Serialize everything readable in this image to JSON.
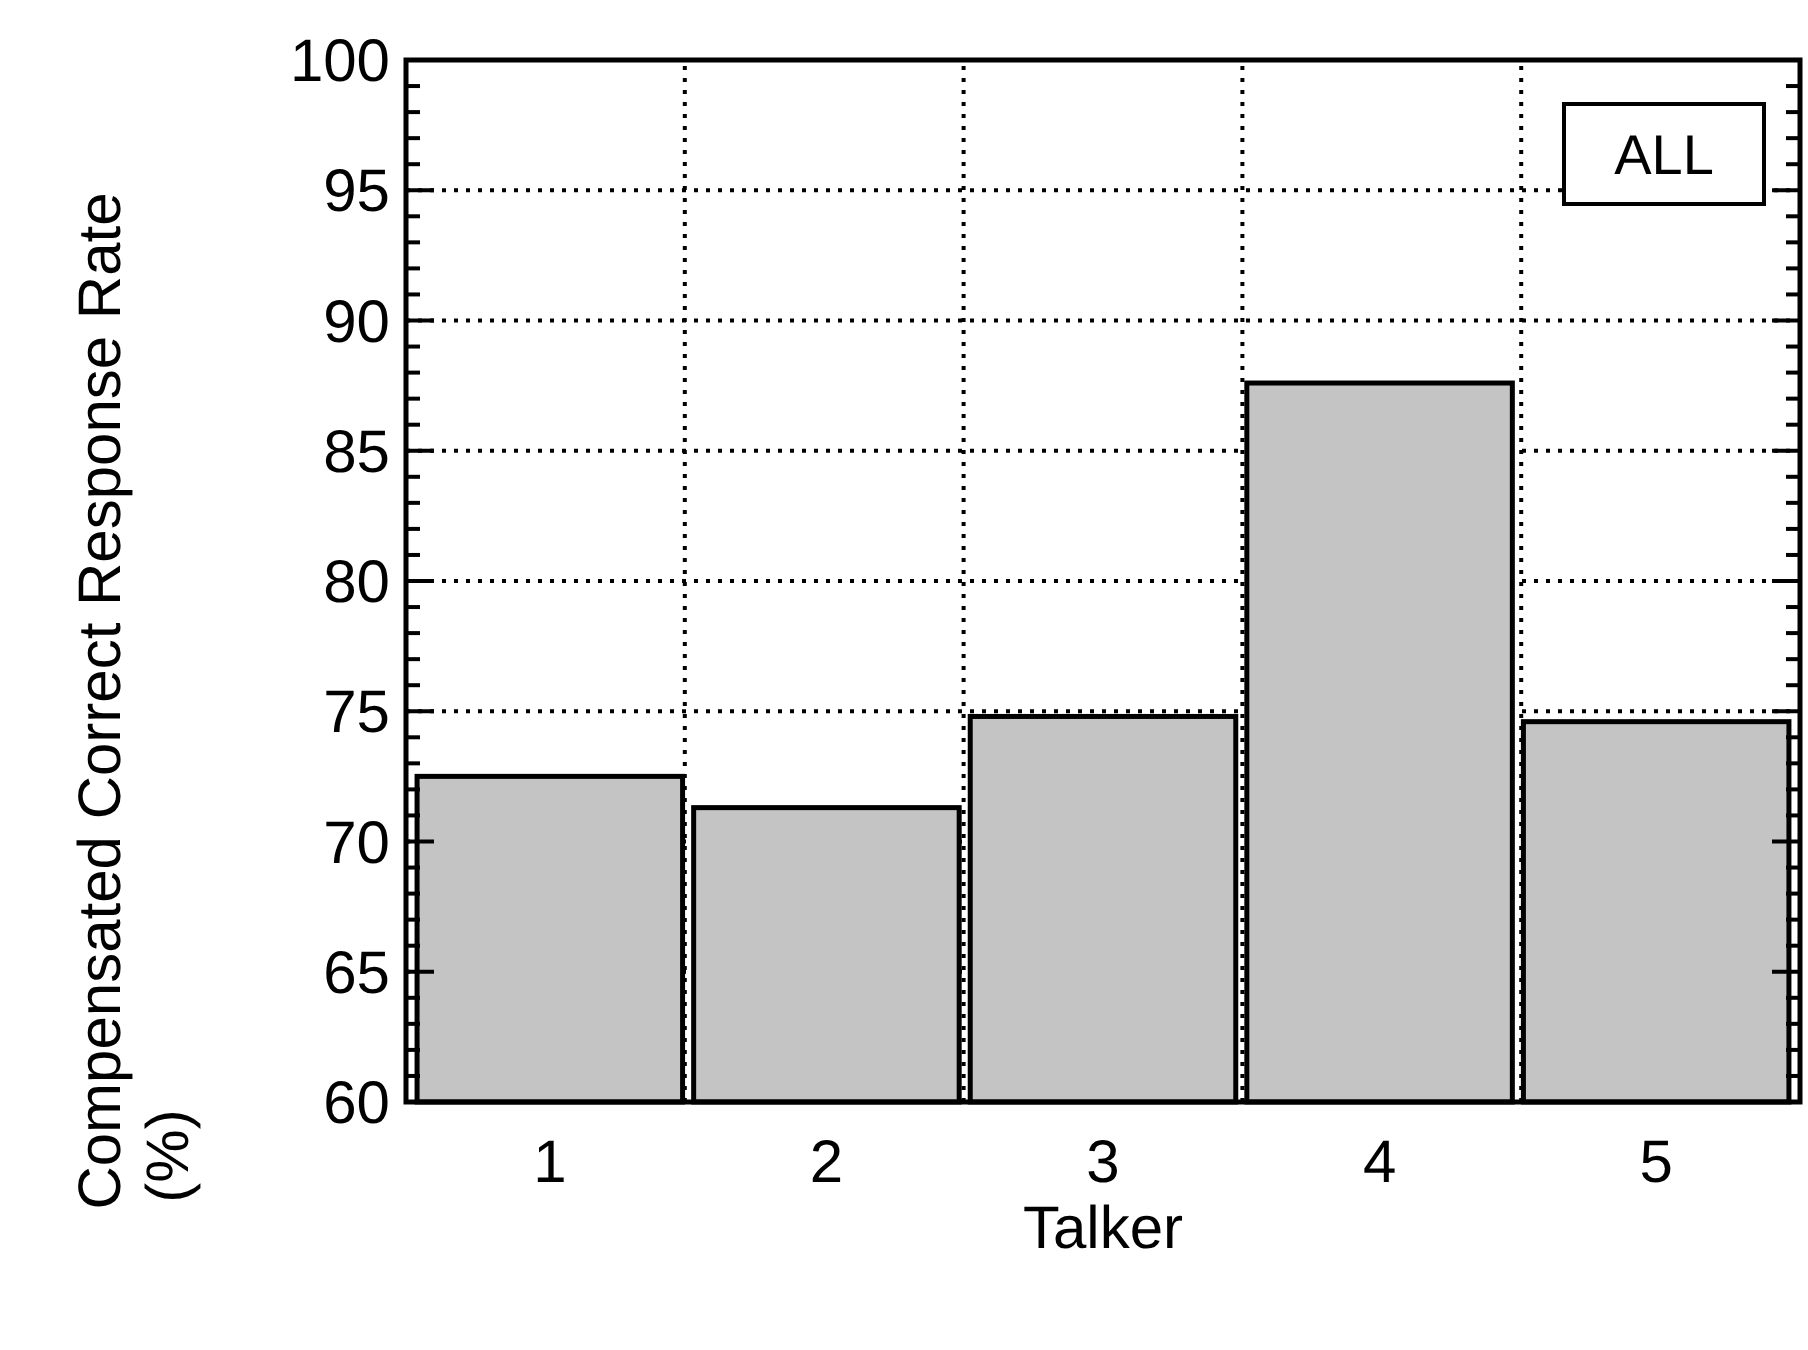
{
  "chart_data": {
    "type": "bar",
    "xlabel": "Talker",
    "ylabel": "Compensated Correct Response Rate (%)",
    "categories": [
      "1",
      "2",
      "3",
      "4",
      "5"
    ],
    "values": [
      72.5,
      71.3,
      74.8,
      87.6,
      74.6
    ],
    "color": "#c4c4c4",
    "ylim": [
      60,
      100
    ],
    "yticks": [
      60,
      {
        "value": 61,
        "label": null
      },
      {
        "value": 62,
        "label": null
      },
      {
        "value": 63,
        "label": null
      },
      {
        "value": 64,
        "label": null
      },
      65,
      {
        "value": 66,
        "label": null
      },
      {
        "value": 67,
        "label": null
      },
      {
        "value": 68,
        "label": null
      },
      {
        "value": 69,
        "label": null
      },
      70,
      {
        "value": 71,
        "label": null
      },
      {
        "value": 72,
        "label": null
      },
      {
        "value": 73,
        "label": null
      },
      {
        "value": 74,
        "label": null
      },
      75,
      {
        "value": 76,
        "label": null
      },
      {
        "value": 77,
        "label": null
      },
      {
        "value": 78,
        "label": null
      },
      {
        "value": 79,
        "label": null
      },
      80,
      {
        "value": 81,
        "label": null
      },
      {
        "value": 82,
        "label": null
      },
      {
        "value": 83,
        "label": null
      },
      {
        "value": 84,
        "label": null
      },
      85,
      {
        "value": 86,
        "label": null
      },
      {
        "value": 87,
        "label": null
      },
      {
        "value": 88,
        "label": null
      },
      {
        "value": 89,
        "label": null
      },
      90,
      {
        "value": 91,
        "label": null
      },
      {
        "value": 92,
        "label": null
      },
      {
        "value": 93,
        "label": null
      },
      {
        "value": 94,
        "label": null
      },
      95,
      {
        "value": 96,
        "label": null
      },
      {
        "value": 97,
        "label": null
      },
      {
        "value": 98,
        "label": null
      },
      {
        "value": 99,
        "label": null
      },
      100
    ],
    "grid": true,
    "annotations": [
      "ALL"
    ]
  }
}
